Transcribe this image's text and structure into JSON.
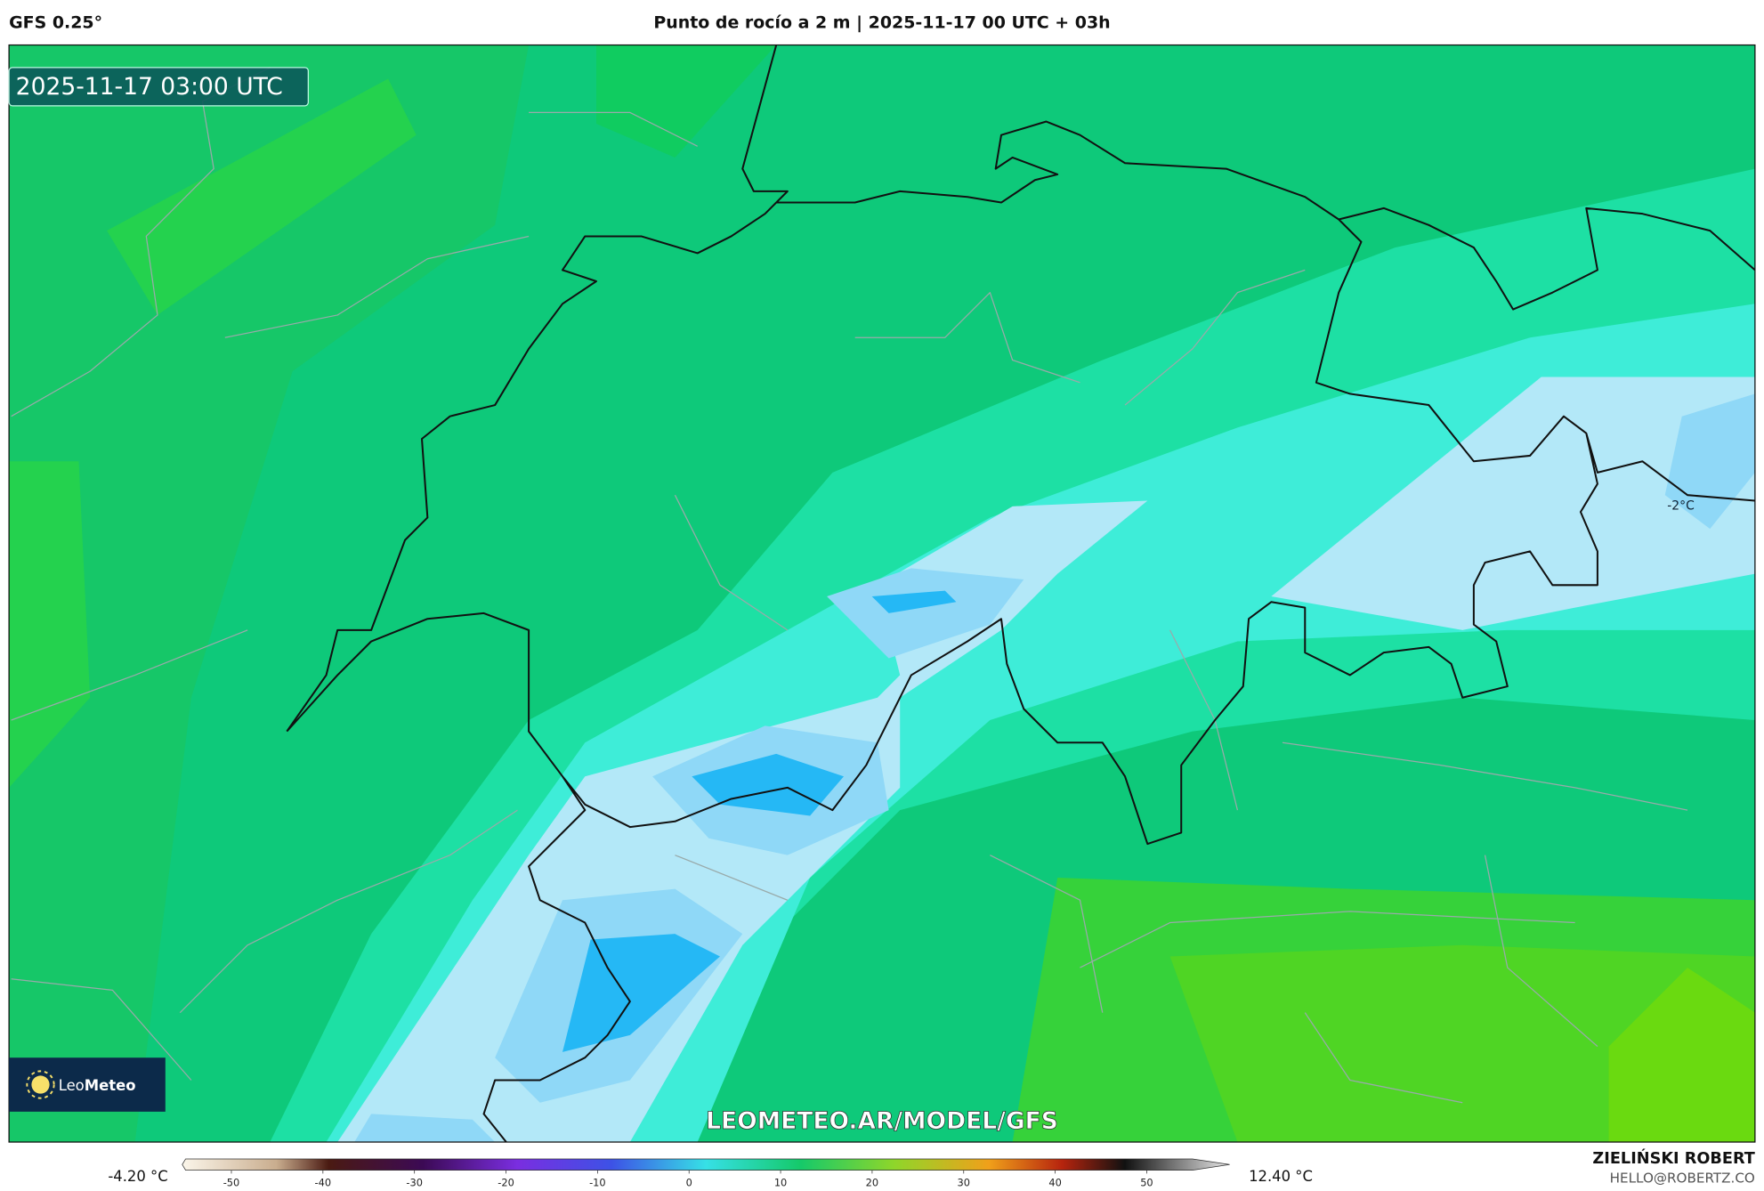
{
  "header": {
    "model": "GFS 0.25°",
    "title": "Punto de rocío a 2 m | 2025-11-17 00 UTC + 03h"
  },
  "map": {
    "valid_time": "2025-11-17 03:00 UTC",
    "labels": [
      "-2°C"
    ],
    "watermark": "LEOMETEO.AR/MODEL/GFS",
    "logo": {
      "text_light": "Leo",
      "text_bold": "Meteo"
    }
  },
  "colorbar": {
    "min_label": "-4.20 °C",
    "max_label": "12.40 °C",
    "range": [
      -55,
      55
    ],
    "ticks": [
      -50,
      -40,
      -30,
      -20,
      -10,
      0,
      10,
      20,
      30,
      40,
      50
    ]
  },
  "footer": {
    "author": "ZIELIŃSKI ROBERT",
    "email": "HELLO@ROBERTZ.CO"
  }
}
